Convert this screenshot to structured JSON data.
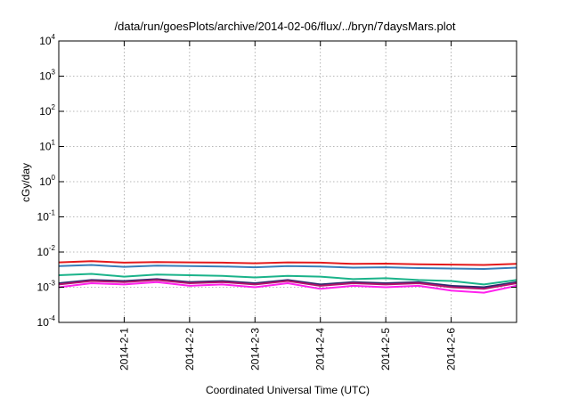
{
  "chart_data": {
    "type": "line",
    "title": "/data/run/goesPlots/archive/2014-02-06/flux/../bryn/7daysMars.plot",
    "xlabel": "Coordinated Universal Time (UTC)",
    "ylabel": "cGy/day",
    "yscale": "log",
    "ylim": [
      0.0001,
      10000
    ],
    "yticks": [
      {
        "base": "10",
        "exp": "-4",
        "value": 0.0001
      },
      {
        "base": "10",
        "exp": "-3",
        "value": 0.001
      },
      {
        "base": "10",
        "exp": "-2",
        "value": 0.01
      },
      {
        "base": "10",
        "exp": "-1",
        "value": 0.1
      },
      {
        "base": "10",
        "exp": "0",
        "value": 1
      },
      {
        "base": "10",
        "exp": "1",
        "value": 10
      },
      {
        "base": "10",
        "exp": "2",
        "value": 100
      },
      {
        "base": "10",
        "exp": "3",
        "value": 1000
      },
      {
        "base": "10",
        "exp": "4",
        "value": 10000
      }
    ],
    "xlim": [
      "2014-01-31T00:00",
      "2014-02-07T00:00"
    ],
    "xticks": [
      {
        "label": "2014-2-1",
        "value": "2014-02-01T00:00"
      },
      {
        "label": "2014-2-2",
        "value": "2014-02-02T00:00"
      },
      {
        "label": "2014-2-3",
        "value": "2014-02-03T00:00"
      },
      {
        "label": "2014-2-4",
        "value": "2014-02-04T00:00"
      },
      {
        "label": "2014-2-5",
        "value": "2014-02-05T00:00"
      },
      {
        "label": "2014-2-6",
        "value": "2014-02-06T00:00"
      }
    ],
    "grid": true,
    "x": [
      "2014-01-31T00:00",
      "2014-01-31T12:00",
      "2014-02-01T00:00",
      "2014-02-01T12:00",
      "2014-02-02T00:00",
      "2014-02-02T12:00",
      "2014-02-03T00:00",
      "2014-02-03T12:00",
      "2014-02-04T00:00",
      "2014-02-04T12:00",
      "2014-02-05T00:00",
      "2014-02-05T12:00",
      "2014-02-06T00:00",
      "2014-02-06T12:00",
      "2014-02-07T00:00"
    ],
    "series": [
      {
        "color": "#e41a1c",
        "values": [
          0.0051,
          0.0055,
          0.005,
          0.0052,
          0.0051,
          0.005,
          0.0048,
          0.0051,
          0.005,
          0.0046,
          0.0047,
          0.0045,
          0.0044,
          0.0043,
          0.0046
        ]
      },
      {
        "color": "#377eb8",
        "values": [
          0.004,
          0.0043,
          0.0038,
          0.0041,
          0.004,
          0.0039,
          0.0037,
          0.004,
          0.0039,
          0.0036,
          0.0037,
          0.0035,
          0.0034,
          0.0033,
          0.0036
        ]
      },
      {
        "color": "#1bb38a",
        "values": [
          0.0022,
          0.0024,
          0.002,
          0.0023,
          0.0022,
          0.0021,
          0.0019,
          0.0021,
          0.002,
          0.0017,
          0.0018,
          0.0016,
          0.0015,
          0.0012,
          0.0016
        ]
      },
      {
        "color": "#2b2b6e",
        "values": [
          0.0013,
          0.0016,
          0.0015,
          0.0017,
          0.0014,
          0.0015,
          0.0013,
          0.0016,
          0.0012,
          0.0014,
          0.0013,
          0.0014,
          0.0011,
          0.001,
          0.0014
        ]
      },
      {
        "color": "#b3136b",
        "values": [
          0.0012,
          0.0015,
          0.0014,
          0.0016,
          0.0013,
          0.0014,
          0.0012,
          0.0015,
          0.0011,
          0.0013,
          0.0012,
          0.0013,
          0.001,
          0.0009,
          0.0013
        ]
      },
      {
        "color": "#ff22ee",
        "values": [
          0.001,
          0.0013,
          0.0012,
          0.0014,
          0.0011,
          0.0012,
          0.001,
          0.0013,
          0.0009,
          0.0011,
          0.001,
          0.0011,
          0.0008,
          0.0007,
          0.0011
        ]
      }
    ]
  }
}
